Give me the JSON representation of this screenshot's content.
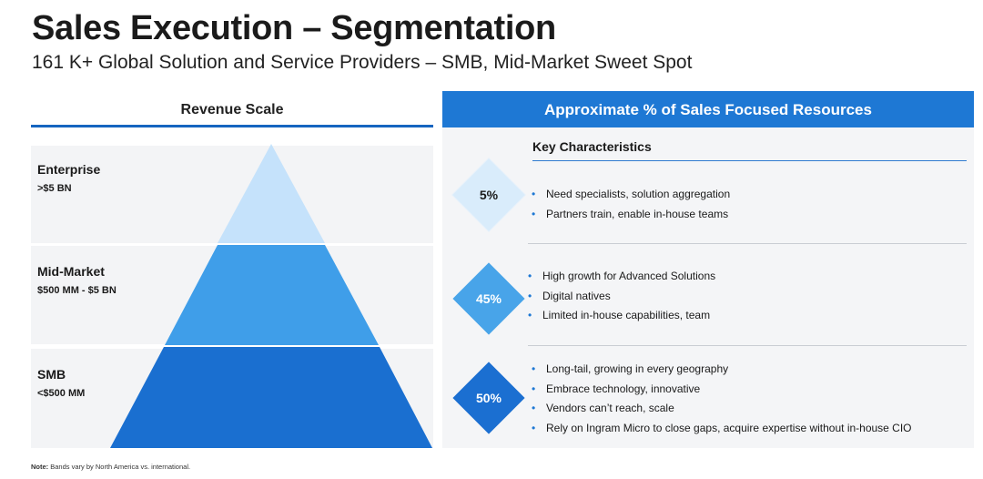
{
  "title": "Sales Execution – Segmentation",
  "subtitle": "161 K+ Global Solution and Service Providers – SMB, Mid-Market Sweet Spot",
  "left_panel": {
    "header": "Revenue Scale",
    "segments": [
      {
        "name": "Enterprise",
        "revenue": ">$5 BN",
        "color": "#c5e2fb"
      },
      {
        "name": "Mid-Market",
        "revenue": "$500 MM - $5 BN",
        "color": "#3f9ee9"
      },
      {
        "name": "SMB",
        "revenue": "<$500 MM",
        "color": "#1a6fd0"
      }
    ]
  },
  "right_panel": {
    "header": "Approximate % of Sales Focused Resources",
    "key_characteristics_label": "Key Characteristics",
    "rows": [
      {
        "percent": "5%",
        "bullets": [
          "Need specialists, solution aggregation",
          "Partners train, enable in-house teams"
        ]
      },
      {
        "percent": "45%",
        "bullets": [
          "High growth for Advanced Solutions",
          "Digital natives",
          "Limited in-house capabilities, team"
        ]
      },
      {
        "percent": "50%",
        "bullets": [
          "Long-tail, growing in every geography",
          "Embrace technology, innovative",
          "Vendors can’t reach, scale",
          "Rely on Ingram Micro to close gaps, acquire expertise without in-house CIO"
        ]
      }
    ]
  },
  "note": {
    "label": "Note:",
    "text": " Bands vary by North America vs. international."
  }
}
